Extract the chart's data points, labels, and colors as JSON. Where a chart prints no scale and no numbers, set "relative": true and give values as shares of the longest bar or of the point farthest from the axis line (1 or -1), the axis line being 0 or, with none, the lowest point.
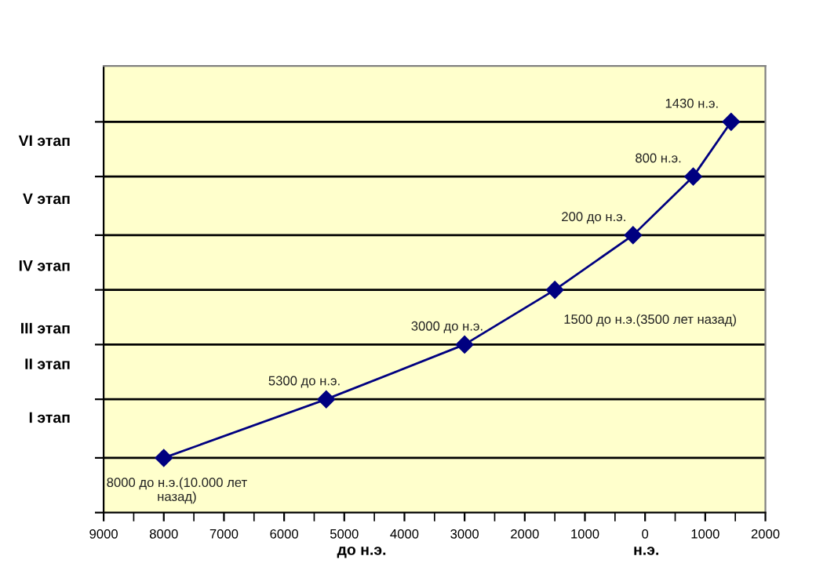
{
  "chart_data": {
    "type": "line",
    "xlabel": "до н.э.",
    "relative": true,
    "x": [
      -8000,
      -5300,
      -3000,
      -1500,
      -200,
      800,
      1430
    ],
    "values": [
      0.14,
      0.29,
      0.43,
      0.57,
      0.71,
      0.86,
      1
    ],
    "color": "#000080",
    "marker": "diamond",
    "line_style": "solid",
    "grid": "y",
    "xlim": [
      -9000,
      2000
    ],
    "xticks": [
      {
        "value": -9000,
        "label": "9000"
      },
      {
        "value": -8500,
        "label": null
      },
      {
        "value": -8000,
        "label": "8000"
      },
      {
        "value": -7500,
        "label": null
      },
      {
        "value": -7000,
        "label": "7000"
      },
      {
        "value": -6500,
        "label": null
      },
      {
        "value": -6000,
        "label": "6000"
      },
      {
        "value": -5500,
        "label": null
      },
      {
        "value": -5000,
        "label": "5000"
      },
      {
        "value": -4500,
        "label": null
      },
      {
        "value": -4000,
        "label": "4000"
      },
      {
        "value": -3500,
        "label": null
      },
      {
        "value": -3000,
        "label": "3000"
      },
      {
        "value": -2500,
        "label": null
      },
      {
        "value": -2000,
        "label": "2000"
      },
      {
        "value": -1500,
        "label": null
      },
      {
        "value": -1000,
        "label": "1000"
      },
      {
        "value": -500,
        "label": null
      },
      0,
      {
        "value": 500,
        "label": null
      },
      1000,
      {
        "value": 1500,
        "label": null
      },
      2000
    ],
    "annotations": [
      {
        "text": "8000 до н.э.(10.000 лет\nназад)",
        "x": -8000,
        "y": 0.14
      },
      {
        "text": "5300 до н.э.",
        "x": -5300,
        "y": 0.29
      },
      {
        "text": "3000 до н.э.",
        "x": -3000,
        "y": 0.43
      },
      {
        "text": "1500 до н.э.(3500 лет назад)",
        "x": -1500,
        "y": 0.57
      },
      {
        "text": "200 до н.э.",
        "x": -200,
        "y": 0.71
      },
      {
        "text": "800 н.э.",
        "x": 800,
        "y": 0.86
      },
      {
        "text": "1430 н.э.",
        "x": 1430,
        "y": 1
      },
      "н.э.",
      "I этап",
      "II этап",
      "III этап",
      "IV этап",
      "V этап",
      "VI этап"
    ]
  }
}
